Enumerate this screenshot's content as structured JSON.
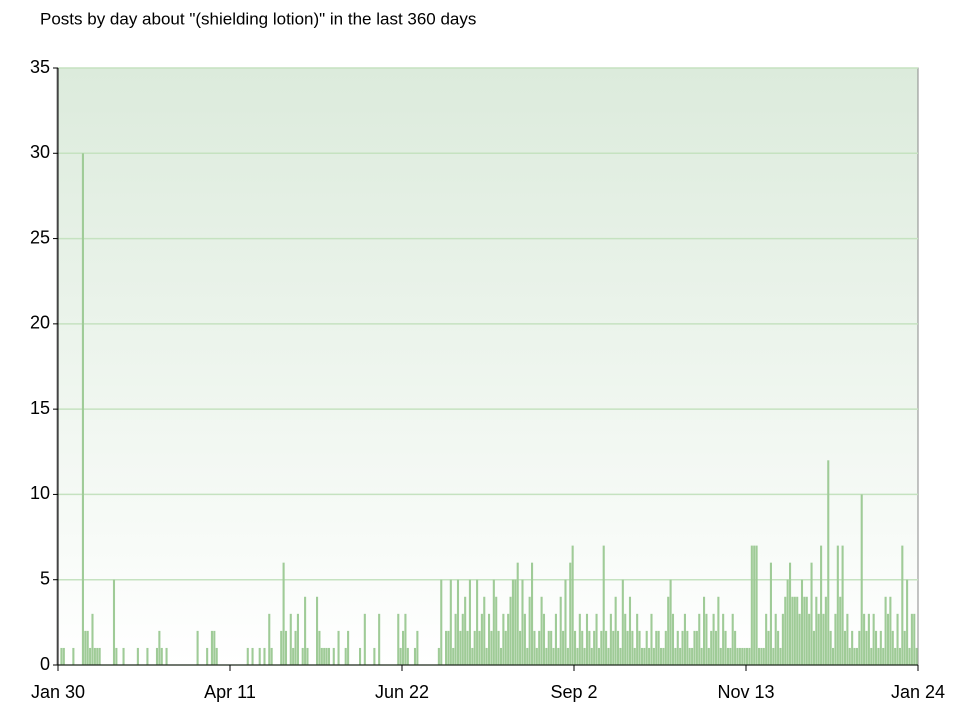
{
  "chart_data": {
    "type": "bar",
    "title": "Posts by day about \"(shielding lotion)\" in the last 360 days",
    "color": "#9fcb97",
    "grid": true,
    "xlim": [
      0,
      360
    ],
    "xticks": [
      {
        "value": 0,
        "label": "Jan 30"
      },
      {
        "value": 72,
        "label": "Apr 11"
      },
      {
        "value": 144,
        "label": "Jun 22"
      },
      {
        "value": 216,
        "label": "Sep 2"
      },
      {
        "value": 288,
        "label": "Nov 13"
      },
      {
        "value": 360,
        "label": "Jan 24"
      }
    ],
    "ylim": [
      0,
      35
    ],
    "yticks": [
      0,
      5,
      10,
      15,
      20,
      25,
      30,
      35
    ],
    "values": [
      0,
      1,
      1,
      0,
      0,
      0,
      1,
      0,
      0,
      0,
      30,
      2,
      2,
      1,
      3,
      1,
      1,
      1,
      0,
      0,
      0,
      0,
      0,
      5,
      1,
      0,
      0,
      1,
      0,
      0,
      0,
      0,
      0,
      1,
      0,
      0,
      0,
      1,
      0,
      0,
      0,
      1,
      2,
      1,
      0,
      1,
      0,
      0,
      0,
      0,
      0,
      0,
      0,
      0,
      0,
      0,
      0,
      0,
      2,
      0,
      0,
      0,
      1,
      0,
      2,
      2,
      1,
      0,
      0,
      0,
      0,
      0,
      0,
      0,
      0,
      0,
      0,
      0,
      0,
      1,
      0,
      1,
      0,
      0,
      1,
      0,
      1,
      0,
      3,
      1,
      0,
      0,
      0,
      2,
      6,
      2,
      0,
      3,
      1,
      2,
      3,
      0,
      1,
      4,
      1,
      0,
      0,
      0,
      4,
      2,
      1,
      1,
      1,
      1,
      0,
      1,
      0,
      2,
      0,
      0,
      1,
      2,
      0,
      0,
      0,
      0,
      1,
      0,
      3,
      0,
      0,
      0,
      1,
      0,
      3,
      0,
      0,
      0,
      0,
      0,
      0,
      0,
      3,
      1,
      2,
      3,
      1,
      0,
      0,
      1,
      2,
      0,
      0,
      0,
      0,
      0,
      0,
      0,
      0,
      1,
      5,
      0,
      2,
      2,
      5,
      1,
      3,
      5,
      2,
      3,
      4,
      2,
      5,
      1,
      2,
      5,
      2,
      3,
      4,
      1,
      3,
      2,
      5,
      4,
      2,
      1,
      3,
      2,
      3,
      4,
      5,
      5,
      6,
      2,
      5,
      3,
      1,
      4,
      6,
      2,
      1,
      2,
      4,
      3,
      1,
      2,
      2,
      1,
      3,
      1,
      4,
      2,
      5,
      1,
      6,
      7,
      2,
      1,
      3,
      2,
      1,
      3,
      2,
      1,
      2,
      3,
      1,
      2,
      7,
      2,
      1,
      3,
      2,
      4,
      2,
      1,
      5,
      3,
      2,
      4,
      2,
      1,
      3,
      2,
      1,
      1,
      2,
      1,
      3,
      1,
      2,
      2,
      1,
      1,
      2,
      4,
      5,
      3,
      1,
      2,
      1,
      2,
      3,
      2,
      1,
      1,
      2,
      2,
      3,
      1,
      4,
      3,
      1,
      2,
      3,
      2,
      4,
      1,
      3,
      2,
      1,
      1,
      3,
      2,
      1,
      1,
      1,
      1,
      1,
      1,
      7,
      7,
      7,
      1,
      1,
      1,
      3,
      2,
      6,
      1,
      3,
      2,
      1,
      3,
      4,
      5,
      6,
      4,
      4,
      4,
      3,
      5,
      4,
      4,
      3,
      6,
      2,
      4,
      3,
      7,
      3,
      4,
      12,
      2,
      1,
      3,
      7,
      4,
      7,
      2,
      3,
      1,
      2,
      1,
      1,
      2,
      10,
      3,
      2,
      3,
      1,
      3,
      2,
      1,
      2,
      1,
      4,
      3,
      4,
      2,
      1,
      3,
      1,
      7,
      2,
      5,
      1,
      3,
      3,
      1
    ]
  }
}
